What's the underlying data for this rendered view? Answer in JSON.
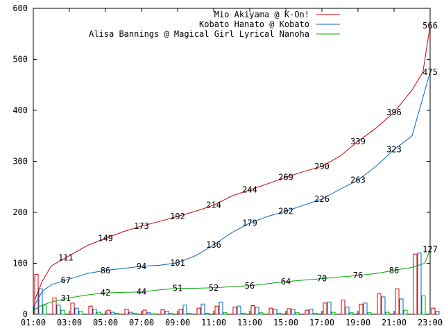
{
  "chart_data": {
    "type": "line",
    "title": "",
    "xlabel": "",
    "ylabel": "",
    "xlim": [
      1,
      23
    ],
    "ylim": [
      0,
      600
    ],
    "x_ticks": [
      "01:00",
      "03:00",
      "05:00",
      "07:00",
      "09:00",
      "11:00",
      "13:00",
      "15:00",
      "17:00",
      "19:00",
      "21:00",
      "23:00"
    ],
    "y_ticks": [
      0,
      100,
      200,
      300,
      400,
      500,
      600
    ],
    "legend_position": "top-right",
    "grid": false,
    "series": [
      {
        "name": "Mio Akiyama @ K-On!",
        "color": "#cc0000",
        "cumulative": [
          {
            "x": 1.0,
            "y": 0
          },
          {
            "x": 1.1,
            "y": 30
          },
          {
            "x": 1.5,
            "y": 65
          },
          {
            "x": 2.0,
            "y": 95
          },
          {
            "x": 2.8,
            "y": 111
          },
          {
            "x": 4.0,
            "y": 135
          },
          {
            "x": 5.0,
            "y": 149
          },
          {
            "x": 6.0,
            "y": 162
          },
          {
            "x": 7.0,
            "y": 173
          },
          {
            "x": 8.0,
            "y": 182
          },
          {
            "x": 9.0,
            "y": 192
          },
          {
            "x": 10.0,
            "y": 202
          },
          {
            "x": 11.0,
            "y": 214
          },
          {
            "x": 12.0,
            "y": 232
          },
          {
            "x": 13.0,
            "y": 244
          },
          {
            "x": 14.0,
            "y": 256
          },
          {
            "x": 15.0,
            "y": 269
          },
          {
            "x": 16.0,
            "y": 280
          },
          {
            "x": 17.0,
            "y": 290
          },
          {
            "x": 18.0,
            "y": 310
          },
          {
            "x": 19.0,
            "y": 339
          },
          {
            "x": 20.0,
            "y": 365
          },
          {
            "x": 21.0,
            "y": 396
          },
          {
            "x": 22.0,
            "y": 440
          },
          {
            "x": 22.6,
            "y": 475
          },
          {
            "x": 23.0,
            "y": 566
          }
        ],
        "labels": [
          {
            "x": 2.8,
            "y": 111
          },
          {
            "x": 5.0,
            "y": 149
          },
          {
            "x": 7.0,
            "y": 173
          },
          {
            "x": 9.0,
            "y": 192
          },
          {
            "x": 11.0,
            "y": 214
          },
          {
            "x": 13.0,
            "y": 244
          },
          {
            "x": 15.0,
            "y": 269
          },
          {
            "x": 17.0,
            "y": 290
          },
          {
            "x": 19.0,
            "y": 339
          },
          {
            "x": 21.0,
            "y": 396
          },
          {
            "x": 23.0,
            "y": 566
          }
        ]
      },
      {
        "name": "Kobato Hanato @ Kobato",
        "color": "#0066cc",
        "cumulative": [
          {
            "x": 1.0,
            "y": 0
          },
          {
            "x": 1.1,
            "y": 20
          },
          {
            "x": 1.5,
            "y": 45
          },
          {
            "x": 2.0,
            "y": 58
          },
          {
            "x": 2.8,
            "y": 67
          },
          {
            "x": 4.0,
            "y": 80
          },
          {
            "x": 5.0,
            "y": 86
          },
          {
            "x": 6.0,
            "y": 90
          },
          {
            "x": 7.0,
            "y": 94
          },
          {
            "x": 8.0,
            "y": 96
          },
          {
            "x": 9.0,
            "y": 101
          },
          {
            "x": 10.0,
            "y": 115
          },
          {
            "x": 11.0,
            "y": 136
          },
          {
            "x": 12.0,
            "y": 160
          },
          {
            "x": 13.0,
            "y": 179
          },
          {
            "x": 14.0,
            "y": 192
          },
          {
            "x": 15.0,
            "y": 202
          },
          {
            "x": 16.0,
            "y": 214
          },
          {
            "x": 17.0,
            "y": 226
          },
          {
            "x": 18.0,
            "y": 245
          },
          {
            "x": 19.0,
            "y": 263
          },
          {
            "x": 20.0,
            "y": 290
          },
          {
            "x": 21.0,
            "y": 323
          },
          {
            "x": 22.0,
            "y": 350
          },
          {
            "x": 23.0,
            "y": 475
          }
        ],
        "labels": [
          {
            "x": 2.8,
            "y": 67
          },
          {
            "x": 5.0,
            "y": 86
          },
          {
            "x": 7.0,
            "y": 94
          },
          {
            "x": 9.0,
            "y": 101
          },
          {
            "x": 11.0,
            "y": 136
          },
          {
            "x": 13.0,
            "y": 179
          },
          {
            "x": 15.0,
            "y": 202
          },
          {
            "x": 17.0,
            "y": 226
          },
          {
            "x": 19.0,
            "y": 263
          },
          {
            "x": 21.0,
            "y": 323
          },
          {
            "x": 23.0,
            "y": 475
          }
        ]
      },
      {
        "name": "Alisa Bannings @ Magical Girl Lyrical Nanoha",
        "color": "#00aa00",
        "cumulative": [
          {
            "x": 1.0,
            "y": 0
          },
          {
            "x": 1.1,
            "y": 10
          },
          {
            "x": 1.5,
            "y": 18
          },
          {
            "x": 2.0,
            "y": 24
          },
          {
            "x": 2.8,
            "y": 31
          },
          {
            "x": 4.0,
            "y": 38
          },
          {
            "x": 5.0,
            "y": 42
          },
          {
            "x": 6.0,
            "y": 43
          },
          {
            "x": 7.0,
            "y": 44
          },
          {
            "x": 8.0,
            "y": 48
          },
          {
            "x": 9.0,
            "y": 51
          },
          {
            "x": 10.0,
            "y": 51
          },
          {
            "x": 11.0,
            "y": 52
          },
          {
            "x": 12.0,
            "y": 54
          },
          {
            "x": 13.0,
            "y": 56
          },
          {
            "x": 14.0,
            "y": 60
          },
          {
            "x": 15.0,
            "y": 64
          },
          {
            "x": 16.0,
            "y": 67
          },
          {
            "x": 17.0,
            "y": 70
          },
          {
            "x": 18.0,
            "y": 73
          },
          {
            "x": 19.0,
            "y": 76
          },
          {
            "x": 20.0,
            "y": 80
          },
          {
            "x": 21.0,
            "y": 86
          },
          {
            "x": 22.0,
            "y": 92
          },
          {
            "x": 22.7,
            "y": 100
          },
          {
            "x": 23.0,
            "y": 127
          }
        ],
        "labels": [
          {
            "x": 2.8,
            "y": 31
          },
          {
            "x": 5.0,
            "y": 42
          },
          {
            "x": 7.0,
            "y": 44
          },
          {
            "x": 9.0,
            "y": 51
          },
          {
            "x": 11.0,
            "y": 52
          },
          {
            "x": 13.0,
            "y": 56
          },
          {
            "x": 15.0,
            "y": 64
          },
          {
            "x": 17.0,
            "y": 70
          },
          {
            "x": 19.0,
            "y": 76
          },
          {
            "x": 21.0,
            "y": 86
          },
          {
            "x": 23.0,
            "y": 127
          }
        ]
      }
    ],
    "hourly_bars": {
      "hours": [
        1,
        2,
        3,
        4,
        5,
        6,
        7,
        8,
        9,
        10,
        11,
        12,
        13,
        14,
        15,
        16,
        17,
        18,
        19,
        20,
        21,
        22,
        23
      ],
      "series": [
        {
          "name": "Mio Akiyama @ K-On!",
          "color": "#cc0000",
          "values": [
            78,
            32,
            22,
            16,
            8,
            10,
            8,
            9,
            10,
            12,
            16,
            14,
            17,
            12,
            11,
            8,
            22,
            28,
            20,
            40,
            50,
            118,
            12
          ]
        },
        {
          "name": "Kobato Hanato @ Kobato",
          "color": "#0066cc",
          "values": [
            50,
            18,
            12,
            10,
            4,
            4,
            3,
            6,
            18,
            20,
            24,
            16,
            14,
            10,
            10,
            10,
            24,
            14,
            22,
            34,
            30,
            120,
            6
          ]
        },
        {
          "name": "Alisa Bannings @ Magical Girl Lyrical Nanoha",
          "color": "#00aa00",
          "values": [
            18,
            8,
            6,
            4,
            2,
            2,
            1,
            2,
            2,
            2,
            3,
            2,
            3,
            2,
            3,
            2,
            4,
            3,
            3,
            4,
            8,
            36,
            0
          ]
        }
      ]
    }
  }
}
